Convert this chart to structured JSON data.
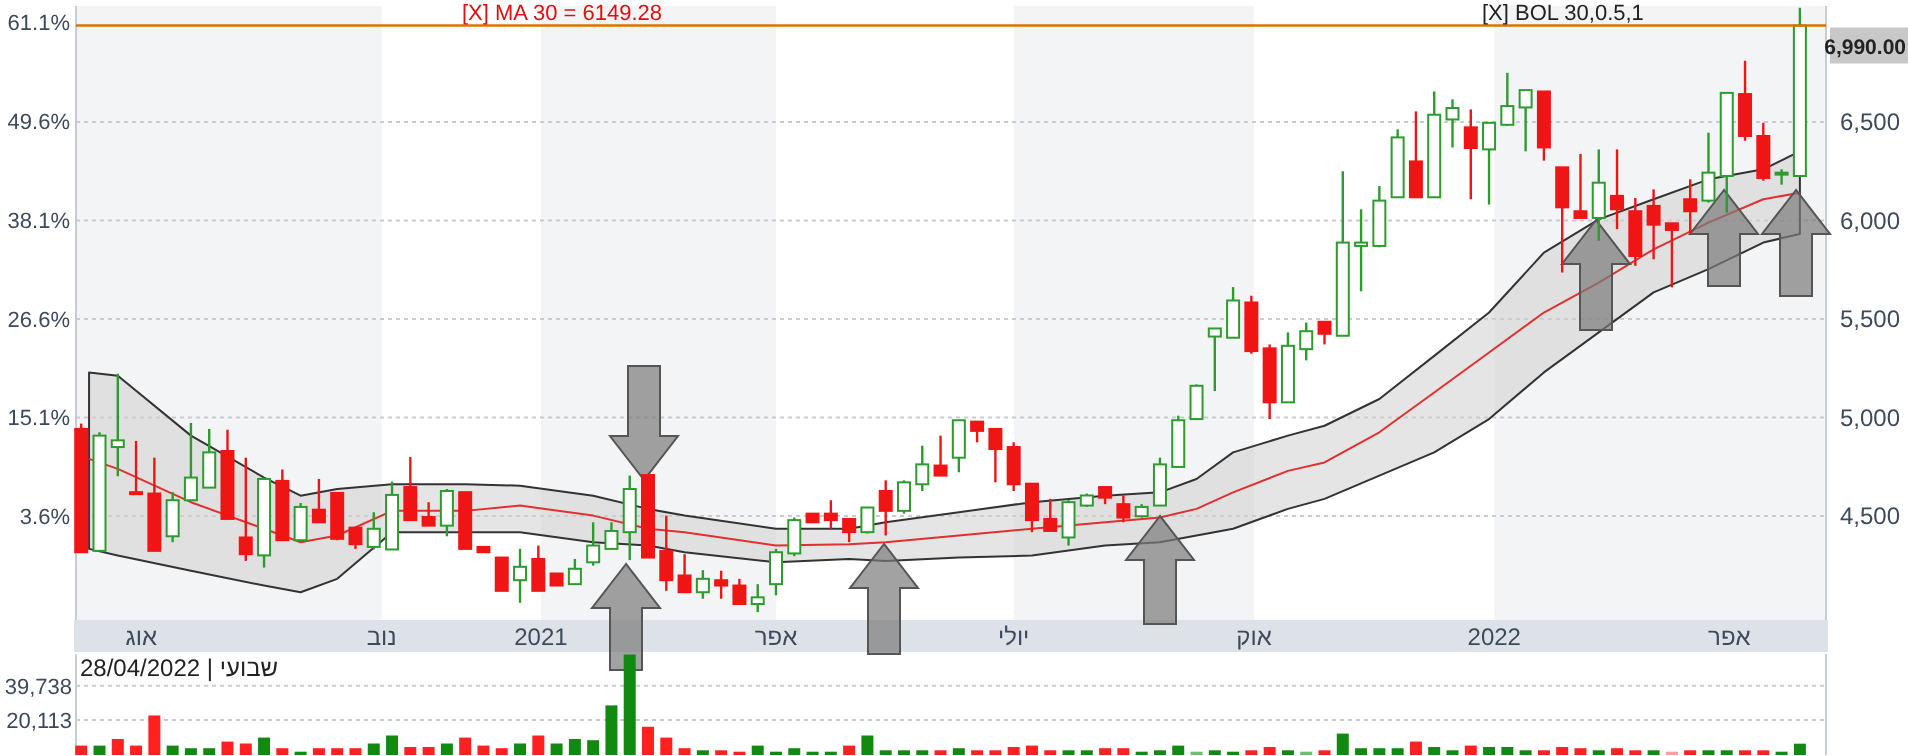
{
  "chart_data": [
    {
      "type": "candlestick",
      "x": [
        "2020-07-09",
        "2020-07-16",
        "2020-07-23",
        "2020-07-30",
        "2020-08-06",
        "2020-08-13",
        "2020-08-20",
        "2020-08-27",
        "2020-09-03",
        "2020-09-10",
        "2020-09-17",
        "2020-09-24",
        "2020-10-01",
        "2020-10-08",
        "2020-10-15",
        "2020-10-22",
        "2020-10-29",
        "2020-11-05",
        "2020-11-12",
        "2020-11-19",
        "2020-11-26",
        "2020-12-03",
        "2020-12-10",
        "2020-12-17",
        "2020-12-24",
        "2020-12-31",
        "2021-01-07",
        "2021-01-14",
        "2021-01-21",
        "2021-01-28",
        "2021-02-04",
        "2021-02-11",
        "2021-02-18",
        "2021-02-25",
        "2021-03-04",
        "2021-03-11",
        "2021-03-18",
        "2021-03-25",
        "2021-04-01",
        "2021-04-08",
        "2021-04-15",
        "2021-04-22",
        "2021-04-29",
        "2021-05-06",
        "2021-05-13",
        "2021-05-20",
        "2021-05-27",
        "2021-06-03",
        "2021-06-10",
        "2021-06-17",
        "2021-06-24",
        "2021-07-01",
        "2021-07-08",
        "2021-07-15",
        "2021-07-22",
        "2021-07-29",
        "2021-08-05",
        "2021-08-12",
        "2021-08-19",
        "2021-08-26",
        "2021-09-02",
        "2021-09-09",
        "2021-09-16",
        "2021-09-23",
        "2021-09-30",
        "2021-10-07",
        "2021-10-14",
        "2021-10-21",
        "2021-10-28",
        "2021-11-04",
        "2021-11-11",
        "2021-11-18",
        "2021-11-25",
        "2021-12-02",
        "2021-12-09",
        "2021-12-16",
        "2021-12-23",
        "2021-12-30",
        "2022-01-06",
        "2022-01-13",
        "2022-01-20",
        "2022-01-27",
        "2022-02-03",
        "2022-02-10",
        "2022-02-17",
        "2022-02-24",
        "2022-03-03",
        "2022-03-10",
        "2022-03-17",
        "2022-03-24",
        "2022-03-31",
        "2022-04-07",
        "2022-04-14",
        "2022-04-21",
        "2022-04-28"
      ],
      "ohlc": [
        [
          4942,
          4969,
          4316,
          4316
        ],
        [
          4323,
          4925,
          4323,
          4908
        ],
        [
          4850,
          5222,
          4702,
          4884
        ],
        [
          4621,
          4881,
          4614,
          4614
        ],
        [
          4614,
          4796,
          4323,
          4323
        ],
        [
          4397,
          4621,
          4367,
          4580
        ],
        [
          4580,
          4972,
          4580,
          4695
        ],
        [
          4644,
          4942,
          4644,
          4823
        ],
        [
          4830,
          4938,
          4485,
          4485
        ],
        [
          4391,
          4796,
          4272,
          4306
        ],
        [
          4300,
          4695,
          4238,
          4688
        ],
        [
          4678,
          4736,
          4377,
          4377
        ],
        [
          4377,
          4566,
          4367,
          4546
        ],
        [
          4532,
          4688,
          4468,
          4468
        ],
        [
          4617,
          4617,
          4377,
          4384
        ],
        [
          4441,
          4441,
          4333,
          4357
        ],
        [
          4343,
          4519,
          4330,
          4435
        ],
        [
          4330,
          4675,
          4330,
          4607
        ],
        [
          4647,
          4799,
          4479,
          4479
        ],
        [
          4495,
          4570,
          4451,
          4451
        ],
        [
          4451,
          4637,
          4397,
          4627
        ],
        [
          4621,
          4621,
          4333,
          4333
        ],
        [
          4343,
          4343,
          4316,
          4316
        ],
        [
          4289,
          4289,
          4120,
          4120
        ],
        [
          4174,
          4333,
          4059,
          4242
        ],
        [
          4282,
          4350,
          4120,
          4120
        ],
        [
          4208,
          4208,
          4147,
          4147
        ],
        [
          4154,
          4282,
          4154,
          4232
        ],
        [
          4265,
          4468,
          4248,
          4350
        ],
        [
          4333,
          4468,
          4333,
          4424
        ],
        [
          4418,
          4705,
          4276,
          4637
        ],
        [
          4708,
          4708,
          4289,
          4289
        ],
        [
          4323,
          4502,
          4120,
          4174
        ],
        [
          4198,
          4306,
          4113,
          4113
        ],
        [
          4113,
          4225,
          4080,
          4181
        ],
        [
          4174,
          4222,
          4080,
          4147
        ],
        [
          4147,
          4181,
          4053,
          4053
        ],
        [
          4053,
          4154,
          4012,
          4087
        ],
        [
          4154,
          4333,
          4097,
          4316
        ],
        [
          4310,
          4492,
          4296,
          4479
        ],
        [
          4512,
          4512,
          4468,
          4468
        ],
        [
          4512,
          4580,
          4435,
          4479
        ],
        [
          4485,
          4485,
          4367,
          4418
        ],
        [
          4418,
          4546,
          4411,
          4543
        ],
        [
          4627,
          4681,
          4401,
          4526
        ],
        [
          4526,
          4681,
          4512,
          4671
        ],
        [
          4661,
          4857,
          4627,
          4762
        ],
        [
          4756,
          4908,
          4705,
          4705
        ],
        [
          4796,
          4986,
          4722,
          4986
        ],
        [
          4979,
          4979,
          4874,
          4932
        ],
        [
          4942,
          4942,
          4671,
          4840
        ],
        [
          4850,
          4874,
          4627,
          4661
        ],
        [
          4664,
          4664,
          4418,
          4479
        ],
        [
          4485,
          4587,
          4424,
          4424
        ],
        [
          4391,
          4580,
          4350,
          4570
        ],
        [
          4553,
          4614,
          4546,
          4604
        ],
        [
          4647,
          4647,
          4560,
          4593
        ],
        [
          4560,
          4604,
          4468,
          4492
        ],
        [
          4499,
          4560,
          4492,
          4546
        ],
        [
          4553,
          4796,
          4553,
          4762
        ],
        [
          4749,
          5009,
          4749,
          4986
        ],
        [
          4992,
          5168,
          4992,
          5161
        ],
        [
          5411,
          5452,
          5134,
          5452
        ],
        [
          5405,
          5662,
          5405,
          5594
        ],
        [
          5584,
          5618,
          5324,
          5337
        ],
        [
          5351,
          5371,
          4992,
          5077
        ],
        [
          5077,
          5432,
          5077,
          5364
        ],
        [
          5347,
          5482,
          5290,
          5438
        ],
        [
          5486,
          5486,
          5371,
          5425
        ],
        [
          5415,
          6250,
          5415,
          5888
        ],
        [
          5871,
          6057,
          5641,
          5888
        ],
        [
          5871,
          6175,
          5864,
          6101
        ],
        [
          6118,
          6463,
          6118,
          6422
        ],
        [
          6300,
          6554,
          6118,
          6118
        ],
        [
          6118,
          6655,
          6118,
          6537
        ],
        [
          6513,
          6615,
          6371,
          6571
        ],
        [
          6473,
          6564,
          6108,
          6368
        ],
        [
          6361,
          6496,
          6081,
          6496
        ],
        [
          6486,
          6750,
          6480,
          6581
        ],
        [
          6574,
          6662,
          6351,
          6662
        ],
        [
          6655,
          6655,
          6304,
          6371
        ],
        [
          6270,
          6270,
          5736,
          6067
        ],
        [
          6047,
          6338,
          6013,
          6013
        ],
        [
          6013,
          6361,
          5898,
          6192
        ],
        [
          6125,
          6361,
          5956,
          6057
        ],
        [
          6047,
          6114,
          5770,
          5820
        ],
        [
          6074,
          6158,
          5803,
          5979
        ],
        [
          5986,
          5986,
          5661,
          5952
        ],
        [
          6108,
          6209,
          5932,
          6047
        ],
        [
          6101,
          6446,
          6091,
          6243
        ],
        [
          6226,
          6648,
          6040,
          6648
        ],
        [
          6642,
          6811,
          6405,
          6429
        ],
        [
          6429,
          6496,
          6202,
          6216
        ],
        [
          6236,
          6260,
          6182,
          6243
        ],
        [
          6226,
          7080,
          6226,
          6990
        ]
      ],
      "colors": [
        "#f01515",
        "#2e9b2e",
        "#2e9b2e",
        "#f01515",
        "#f01515",
        "#2e9b2e",
        "#2e9b2e",
        "#2e9b2e",
        "#f01515",
        "#f01515",
        "#2e9b2e",
        "#f01515",
        "#2e9b2e",
        "#f01515",
        "#f01515",
        "#f01515",
        "#2e9b2e",
        "#2e9b2e",
        "#f01515",
        "#f01515",
        "#2e9b2e",
        "#f01515",
        "#f01515",
        "#f01515",
        "#2e9b2e",
        "#f01515",
        "#f01515",
        "#2e9b2e",
        "#2e9b2e",
        "#2e9b2e",
        "#2e9b2e",
        "#f01515",
        "#f01515",
        "#f01515",
        "#2e9b2e",
        "#f01515",
        "#f01515",
        "#2e9b2e",
        "#2e9b2e",
        "#2e9b2e",
        "#f01515",
        "#f01515",
        "#f01515",
        "#2e9b2e",
        "#f01515",
        "#2e9b2e",
        "#2e9b2e",
        "#f01515",
        "#2e9b2e",
        "#f01515",
        "#f01515",
        "#f01515",
        "#f01515",
        "#f01515",
        "#2e9b2e",
        "#2e9b2e",
        "#f01515",
        "#f01515",
        "#2e9b2e",
        "#2e9b2e",
        "#2e9b2e",
        "#2e9b2e",
        "#2e9b2e",
        "#2e9b2e",
        "#f01515",
        "#f01515",
        "#2e9b2e",
        "#2e9b2e",
        "#f01515",
        "#2e9b2e",
        "#2e9b2e",
        "#2e9b2e",
        "#2e9b2e",
        "#f01515",
        "#2e9b2e",
        "#2e9b2e",
        "#f01515",
        "#2e9b2e",
        "#2e9b2e",
        "#2e9b2e",
        "#f01515",
        "#f01515",
        "#f01515",
        "#2e9b2e",
        "#f01515",
        "#f01515",
        "#f01515",
        "#f01515",
        "#f01515",
        "#2e9b2e",
        "#2e9b2e",
        "#f01515",
        "#f01515",
        "#2e9b2e",
        "#2e9b2e"
      ],
      "series": [
        {
          "type": "line",
          "color": "#e03030",
          "x": [
            "2020-07-12",
            "2020-07-23",
            "2020-08-20",
            "2020-09-17",
            "2020-10-01",
            "2020-10-15",
            "2020-11-05",
            "2020-12-03",
            "2020-12-24",
            "2021-01-21",
            "2021-02-11",
            "2021-02-25",
            "2021-04-01",
            "2021-04-29",
            "2021-05-13",
            "2021-06-10",
            "2021-07-08",
            "2021-08-05",
            "2021-08-26",
            "2021-09-09",
            "2021-09-23",
            "2021-10-14",
            "2021-10-28",
            "2021-11-18",
            "2021-12-09",
            "2021-12-30",
            "2022-01-20",
            "2022-02-10",
            "2022-03-03",
            "2022-03-24",
            "2022-04-14",
            "2022-04-28"
          ],
          "values": [
            4790,
            4739,
            4570,
            4435,
            4367,
            4401,
            4526,
            4526,
            4553,
            4502,
            4435,
            4418,
            4350,
            4357,
            4367,
            4401,
            4435,
            4468,
            4492,
            4536,
            4620,
            4729,
            4772,
            4925,
            5127,
            5330,
            5533,
            5685,
            5854,
            5989,
            6108,
            6141
          ],
          "lower": [
            4333,
            4299,
            4222,
            4147,
            4113,
            4181,
            4418,
            4418,
            4418,
            4367,
            4350,
            4316,
            4265,
            4282,
            4272,
            4289,
            4299,
            4350,
            4367,
            4401,
            4435,
            4536,
            4587,
            4705,
            4823,
            4992,
            5229,
            5432,
            5635,
            5753,
            5888,
            5932
          ],
          "upper": [
            5229,
            5212,
            4908,
            4695,
            4603,
            4637,
            4661,
            4661,
            4654,
            4603,
            4536,
            4502,
            4435,
            4435,
            4468,
            4519,
            4570,
            4603,
            4620,
            4688,
            4823,
            4908,
            4958,
            5094,
            5313,
            5533,
            5837,
            6006,
            6108,
            6209,
            6260,
            6351
          ]
        }
      ],
      "xlim": [
        "2020-07-07",
        "2022-05-08"
      ],
      "xticks": [
        {
          "value": "2020-08-01",
          "label": "אוג"
        },
        {
          "value": "2020-11-01",
          "label": "נוב"
        },
        {
          "value": "2021-01-01",
          "label": "2021"
        },
        {
          "value": "2021-04-01",
          "label": "אפר"
        },
        {
          "value": "2021-07-01",
          "label": "יולי"
        },
        {
          "value": "2021-10-01",
          "label": "אוק"
        },
        {
          "value": "2022-01-01",
          "label": "2022"
        },
        {
          "value": "2022-04-01",
          "label": "אפר"
        }
      ],
      "ylim": [
        3972,
        7089
      ],
      "yticks": [
        {
          "value": 4500,
          "label": "4,500"
        },
        {
          "value": 5000,
          "label": "5,000"
        },
        {
          "value": 5500,
          "label": "5,500"
        },
        {
          "value": 6000,
          "label": "6,000"
        },
        {
          "value": 6500,
          "label": "6,500"
        }
      ],
      "y2lim": [
        -8.5,
        63.0
      ],
      "y2ticks": [
        {
          "value": 3.6,
          "label": "3.6%"
        },
        {
          "value": 15.1,
          "label": "15.1%"
        },
        {
          "value": 26.6,
          "label": "26.6%"
        },
        {
          "value": 38.1,
          "label": "38.1%"
        },
        {
          "value": 49.6,
          "label": "49.6%"
        },
        {
          "value": 61.1,
          "label": "61.1%"
        }
      ],
      "grid": "y",
      "ref_lines": [
        {
          "axis": "y",
          "value": 6990,
          "label": "6,990.00",
          "color": "#e07000"
        }
      ],
      "bands": [
        {
          "axis": "x",
          "from": "2020-07-07",
          "to": "2020-11-01",
          "color": "#f3f4f6"
        },
        {
          "axis": "x",
          "from": "2021-01-01",
          "to": "2021-04-01",
          "color": "#f3f4f6"
        },
        {
          "axis": "x",
          "from": "2021-07-01",
          "to": "2021-10-01",
          "color": "#f3f4f6"
        },
        {
          "axis": "x",
          "from": "2022-01-01",
          "to": "2022-05-08",
          "color": "#f3f4f6"
        }
      ],
      "annotations": [
        "[X] MA 30 = 6149.28",
        "[X] BOL 30,0.5,1"
      ]
    },
    {
      "type": "bar",
      "x": [
        "2020-07-09",
        "2020-07-16",
        "2020-07-23",
        "2020-07-30",
        "2020-08-06",
        "2020-08-13",
        "2020-08-20",
        "2020-08-27",
        "2020-09-03",
        "2020-09-10",
        "2020-09-17",
        "2020-09-24",
        "2020-10-01",
        "2020-10-08",
        "2020-10-15",
        "2020-10-22",
        "2020-10-29",
        "2020-11-05",
        "2020-11-12",
        "2020-11-19",
        "2020-11-26",
        "2020-12-03",
        "2020-12-10",
        "2020-12-17",
        "2020-12-24",
        "2020-12-31",
        "2021-01-07",
        "2021-01-14",
        "2021-01-21",
        "2021-01-28",
        "2021-02-04",
        "2021-02-11",
        "2021-02-18",
        "2021-02-25",
        "2021-03-04",
        "2021-03-11",
        "2021-03-18",
        "2021-03-25",
        "2021-04-01",
        "2021-04-08",
        "2021-04-15",
        "2021-04-22",
        "2021-04-29",
        "2021-05-06",
        "2021-05-13",
        "2021-05-20",
        "2021-05-27",
        "2021-06-03",
        "2021-06-10",
        "2021-06-17",
        "2021-06-24",
        "2021-07-01",
        "2021-07-08",
        "2021-07-15",
        "2021-07-22",
        "2021-07-29",
        "2021-08-05",
        "2021-08-12",
        "2021-08-19",
        "2021-08-26",
        "2021-09-02",
        "2021-09-09",
        "2021-09-16",
        "2021-09-23",
        "2021-09-30",
        "2021-10-07",
        "2021-10-14",
        "2021-10-21",
        "2021-10-28",
        "2021-11-04",
        "2021-11-11",
        "2021-11-18",
        "2021-11-25",
        "2021-12-02",
        "2021-12-09",
        "2021-12-16",
        "2021-12-23",
        "2021-12-30",
        "2022-01-06",
        "2022-01-13",
        "2022-01-20",
        "2022-01-27",
        "2022-02-03",
        "2022-02-10",
        "2022-02-17",
        "2022-02-24",
        "2022-03-03",
        "2022-03-10",
        "2022-03-17",
        "2022-03-24",
        "2022-03-31",
        "2022-04-07",
        "2022-04-14",
        "2022-04-21",
        "2022-04-28"
      ],
      "values": [
        5400,
        5400,
        9200,
        5400,
        22700,
        5400,
        3900,
        3900,
        7700,
        6600,
        10000,
        3900,
        1900,
        3900,
        3900,
        3900,
        6600,
        11200,
        4600,
        4600,
        6600,
        10000,
        5400,
        3900,
        6600,
        11200,
        6600,
        9200,
        8500,
        28500,
        57700,
        16200,
        10000,
        3900,
        2700,
        2700,
        1900,
        5400,
        1900,
        3900,
        1900,
        1900,
        5400,
        11200,
        2700,
        2700,
        2700,
        2700,
        3900,
        2700,
        2700,
        4600,
        5400,
        2700,
        2700,
        2700,
        3900,
        3900,
        1900,
        2700,
        5400,
        1900,
        2700,
        1900,
        2700,
        4600,
        2700,
        1900,
        2700,
        12300,
        3900,
        3900,
        3900,
        7700,
        4600,
        2700,
        5400,
        4600,
        4600,
        2700,
        2700,
        4600,
        3900,
        2700,
        3900,
        2700,
        2700,
        1900,
        2700,
        2700,
        2700,
        2700,
        2700,
        1900,
        6500
      ],
      "colors": [
        "#ff2020",
        "#128a12",
        "#ff2020",
        "#ff2020",
        "#ff2020",
        "#128a12",
        "#128a12",
        "#128a12",
        "#ff2020",
        "#ff2020",
        "#128a12",
        "#ff2020",
        "#128a12",
        "#ff2020",
        "#ff2020",
        "#ff2020",
        "#128a12",
        "#128a12",
        "#ff2020",
        "#ff2020",
        "#128a12",
        "#ff2020",
        "#ff2020",
        "#ff2020",
        "#128a12",
        "#ff2020",
        "#128a12",
        "#128a12",
        "#128a12",
        "#128a12",
        "#128a12",
        "#ff2020",
        "#ff2020",
        "#ff2020",
        "#128a12",
        "#ff2020",
        "#ff2020",
        "#128a12",
        "#128a12",
        "#128a12",
        "#128a12",
        "#128a12",
        "#ff2020",
        "#128a12",
        "#128a12",
        "#128a12",
        "#128a12",
        "#ff2020",
        "#128a12",
        "#ff2020",
        "#ff2020",
        "#ff2020",
        "#ff2020",
        "#ff2020",
        "#128a12",
        "#128a12",
        "#ff2020",
        "#ff2020",
        "#128a12",
        "#128a12",
        "#128a12",
        "#6fbf6f",
        "#128a12",
        "#128a12",
        "#ff2020",
        "#ff2020",
        "#128a12",
        "#6fbf6f",
        "#ff2020",
        "#128a12",
        "#128a12",
        "#128a12",
        "#128a12",
        "#ff2020",
        "#128a12",
        "#128a12",
        "#ff2020",
        "#128a12",
        "#128a12",
        "#128a12",
        "#ff2020",
        "#ff2020",
        "#ff2020",
        "#128a12",
        "#ff2020",
        "#ff2020",
        "#128a12",
        "#ff9c9c",
        "#ff2020",
        "#128a12",
        "#128a12",
        "#ff2020",
        "#ff2020",
        "#128a12",
        "#128a12"
      ],
      "xlim": [
        "2020-07-07",
        "2022-05-08"
      ],
      "ylim": [
        0,
        58000
      ],
      "yticks": [
        {
          "value": 20113,
          "label": "20,113"
        },
        {
          "value": 39738,
          "label": "39,738"
        }
      ],
      "grid": "y",
      "tick_labels": "y",
      "annotations": [
        "שבועי | 28/04/2022"
      ]
    }
  ]
}
